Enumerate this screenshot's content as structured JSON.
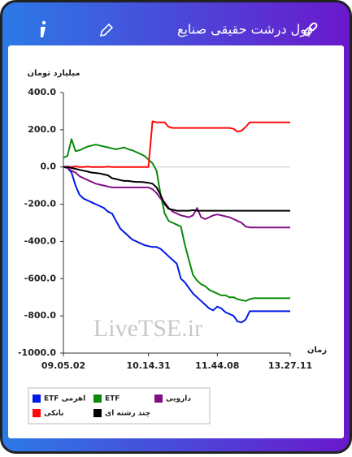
{
  "header": {
    "title": "پول درشت حقیقی صنایع"
  },
  "chart_data": {
    "type": "line",
    "y_label": "میلیارد تومان",
    "x_label": "زمان",
    "watermark": "LiveTSE.ir",
    "categories": [
      "09.05.02",
      null,
      null,
      null,
      null,
      null,
      null,
      null,
      null,
      null,
      null,
      null,
      null,
      null,
      null,
      null,
      null,
      null,
      null,
      null,
      null,
      "10.14.31",
      null,
      null,
      null,
      null,
      null,
      null,
      null,
      null,
      null,
      null,
      null,
      null,
      null,
      null,
      null,
      null,
      "11.44.08",
      null,
      null,
      null,
      null,
      null,
      null,
      null,
      null,
      null,
      null,
      null,
      null,
      null,
      null,
      null,
      null,
      null,
      "13.27.11"
    ],
    "ylim": [
      -1000,
      400
    ],
    "yticks": [
      {
        "value": 400,
        "label": "400.0"
      },
      {
        "value": 200,
        "label": "200.0"
      },
      {
        "value": 0,
        "label": "0.0"
      },
      {
        "value": -200,
        "label": "-200.0"
      },
      {
        "value": -400,
        "label": "-400.0"
      },
      {
        "value": -600,
        "label": "-600.0"
      },
      {
        "value": -800,
        "label": "-800.0"
      },
      {
        "value": -1000,
        "label": "-1000.0"
      }
    ],
    "zero_line": true,
    "series": [
      {
        "name": "ETF اهرمی",
        "color": "#0019e6",
        "values": [
          0,
          -5,
          -30,
          -100,
          -150,
          -170,
          -180,
          -190,
          -200,
          -210,
          -220,
          -240,
          -250,
          -290,
          -330,
          -350,
          -370,
          -390,
          -400,
          -410,
          -420,
          -425,
          -430,
          -430,
          -440,
          -460,
          -480,
          -500,
          -520,
          -600,
          -620,
          -650,
          -680,
          -700,
          -720,
          -740,
          -760,
          -770,
          -750,
          -760,
          -780,
          -790,
          -800,
          -830,
          -835,
          -820,
          -775,
          -775,
          -775,
          -775,
          -775,
          -775,
          -775,
          -775,
          -775,
          -775,
          -775
        ]
      },
      {
        "name": "ETF",
        "color": "#0a8a0a",
        "values": [
          50,
          60,
          150,
          85,
          90,
          100,
          110,
          115,
          120,
          115,
          110,
          105,
          100,
          95,
          100,
          105,
          95,
          90,
          80,
          70,
          60,
          40,
          20,
          -20,
          -150,
          -250,
          -290,
          -300,
          -310,
          -320,
          -420,
          -500,
          -580,
          -610,
          -630,
          -640,
          -660,
          -670,
          -680,
          -690,
          -690,
          -700,
          -700,
          -710,
          -715,
          -720,
          -710,
          -705,
          -705,
          -705,
          -705,
          -705,
          -705,
          -705,
          -705,
          -705,
          -705
        ]
      },
      {
        "name": "دارویی",
        "color": "#800f86",
        "values": [
          0,
          -5,
          -20,
          -30,
          -50,
          -60,
          -70,
          -80,
          -90,
          -95,
          -100,
          -105,
          -110,
          -110,
          -110,
          -110,
          -110,
          -110,
          -110,
          -110,
          -110,
          -110,
          -120,
          -140,
          -170,
          -190,
          -220,
          -240,
          -250,
          -260,
          -265,
          -270,
          -260,
          -220,
          -270,
          -280,
          -270,
          -260,
          -255,
          -260,
          -265,
          -270,
          -280,
          -290,
          -300,
          -320,
          -325,
          -325,
          -325,
          -325,
          -325,
          -325,
          -325,
          -325,
          -325,
          -325,
          -325
        ]
      },
      {
        "name": "بانکی",
        "color": "#ff0a0a",
        "values": [
          0,
          2,
          0,
          3,
          0,
          0,
          2,
          0,
          0,
          0,
          0,
          2,
          0,
          0,
          0,
          0,
          0,
          0,
          0,
          0,
          0,
          0,
          245,
          240,
          240,
          240,
          215,
          210,
          210,
          210,
          210,
          210,
          210,
          210,
          210,
          210,
          210,
          210,
          210,
          210,
          210,
          210,
          205,
          190,
          195,
          215,
          240,
          240,
          240,
          240,
          240,
          240,
          240,
          240,
          240,
          240,
          240
        ]
      },
      {
        "name": "چند رشته ای",
        "color": "#000000",
        "values": [
          0,
          0,
          -5,
          -10,
          -15,
          -20,
          -25,
          -30,
          -32,
          -35,
          -40,
          -45,
          -60,
          -65,
          -70,
          -75,
          -75,
          -78,
          -80,
          -80,
          -82,
          -85,
          -90,
          -110,
          -150,
          -200,
          -225,
          -230,
          -235,
          -235,
          -235,
          -235,
          -232,
          -235,
          -235,
          -235,
          -235,
          -235,
          -235,
          -235,
          -235,
          -235,
          -235,
          -235,
          -235,
          -235,
          -235,
          -235,
          -235,
          -235,
          -235,
          -235,
          -235,
          -235,
          -235,
          -235,
          -235
        ]
      }
    ]
  }
}
